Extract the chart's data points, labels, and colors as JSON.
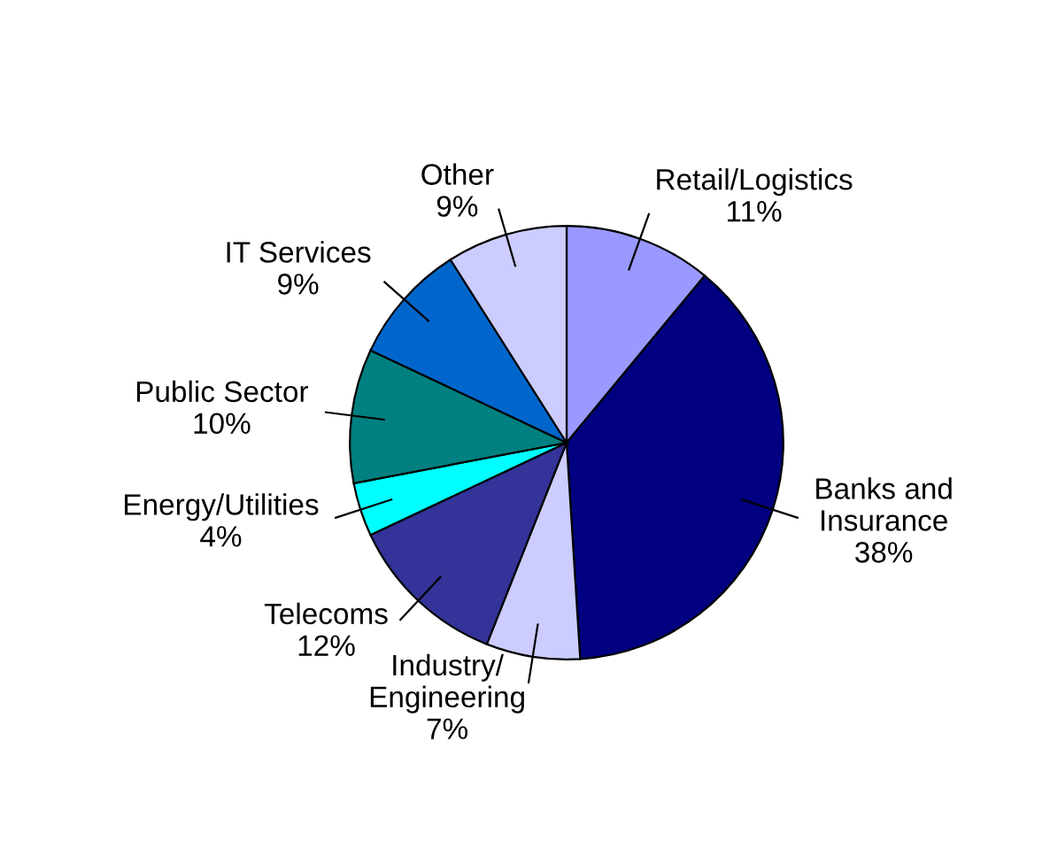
{
  "chart_data": {
    "type": "pie",
    "categories": [
      "Retail/Logistics",
      "Banks and\nInsurance",
      "Industry/\nEngineering",
      "Telecoms",
      "Energy/Utilities",
      "Public Sector",
      "IT Services",
      "Other"
    ],
    "values": [
      11,
      38,
      7,
      12,
      4,
      10,
      9,
      9
    ],
    "colors": [
      "#9999ff",
      "#000080",
      "#ccccff",
      "#333399",
      "#00ffff",
      "#008080",
      "#0066cc",
      "#ccccff"
    ],
    "value_labels": [
      "11%",
      "38%",
      "7%",
      "12%",
      "4%",
      "10%",
      "9%",
      "9%"
    ],
    "legend": false
  }
}
